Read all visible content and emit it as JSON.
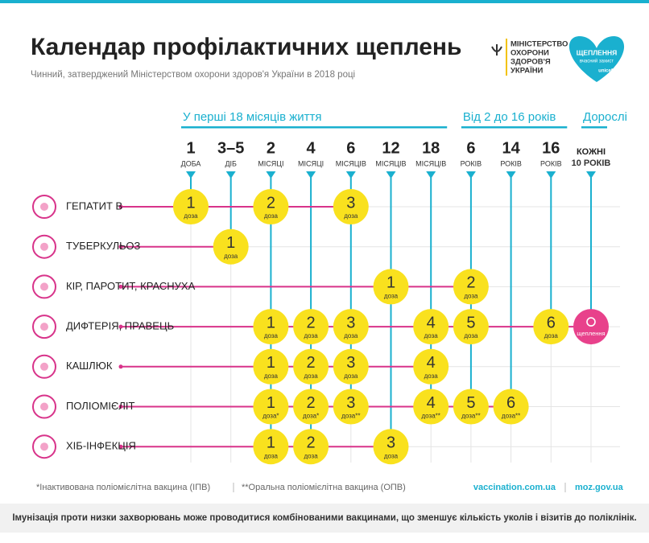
{
  "header": {
    "title": "Календар профілактичних щеплень",
    "subtitle": "Чинний, затверджений Міністерством охорони здоров'я України в 2018 році",
    "ministry": [
      "МІНІСТЕРСТВО",
      "ОХОРОНИ",
      "ЗДОРОВ'Я",
      "УКРАЇНИ"
    ],
    "badge": [
      "ЩЕПЛЕННЯ",
      "вчасний захист",
      "unicef"
    ]
  },
  "groups": [
    "У перші 18 місяців життя",
    "Від 2 до 16 років",
    "Дорослі"
  ],
  "columns": [
    {
      "value": "1",
      "unit": "ДОБА"
    },
    {
      "value": "3–5",
      "unit": "ДІБ"
    },
    {
      "value": "2",
      "unit": "МІСЯЦІ"
    },
    {
      "value": "4",
      "unit": "МІСЯЦІ"
    },
    {
      "value": "6",
      "unit": "МІСЯЦІВ"
    },
    {
      "value": "12",
      "unit": "МІСЯЦІВ"
    },
    {
      "value": "18",
      "unit": "МІСЯЦІВ"
    },
    {
      "value": "6",
      "unit": "РОКІВ"
    },
    {
      "value": "14",
      "unit": "РОКІВ"
    },
    {
      "value": "16",
      "unit": "РОКІВ"
    },
    {
      "value": "КОЖНІ",
      "unit": "10 РОКІВ"
    }
  ],
  "rows": [
    {
      "name": "ГЕПАТИТ В",
      "cells": [
        {
          "dose": "1",
          "label": "доза"
        },
        null,
        {
          "dose": "2",
          "label": "доза"
        },
        null,
        {
          "dose": "3",
          "label": "доза"
        },
        null,
        null,
        null,
        null,
        null,
        null
      ]
    },
    {
      "name": "ТУБЕРКУЛЬОЗ",
      "cells": [
        null,
        {
          "dose": "1",
          "label": "доза"
        },
        null,
        null,
        null,
        null,
        null,
        null,
        null,
        null,
        null
      ]
    },
    {
      "name": "КІР, ПАРОТИТ, КРАСНУХА",
      "cells": [
        null,
        null,
        null,
        null,
        null,
        {
          "dose": "1",
          "label": "доза"
        },
        null,
        {
          "dose": "2",
          "label": "доза"
        },
        null,
        null,
        null
      ]
    },
    {
      "name": "ДИФТЕРІЯ, ПРАВЕЦЬ",
      "cells": [
        null,
        null,
        {
          "dose": "1",
          "label": "доза"
        },
        {
          "dose": "2",
          "label": "доза"
        },
        {
          "dose": "3",
          "label": "доза"
        },
        null,
        {
          "dose": "4",
          "label": "доза"
        },
        {
          "dose": "5",
          "label": "доза"
        },
        null,
        {
          "dose": "6",
          "label": "доза"
        },
        {
          "label": "щеплення"
        }
      ]
    },
    {
      "name": "КАШЛЮК",
      "cells": [
        null,
        null,
        {
          "dose": "1",
          "label": "доза"
        },
        {
          "dose": "2",
          "label": "доза"
        },
        {
          "dose": "3",
          "label": "доза"
        },
        null,
        {
          "dose": "4",
          "label": "доза"
        },
        null,
        null,
        null,
        null
      ]
    },
    {
      "name": "ПОЛІОМІЄЛІТ",
      "cells": [
        null,
        null,
        {
          "dose": "1",
          "label": "доза*"
        },
        {
          "dose": "2",
          "label": "доза*"
        },
        {
          "dose": "3",
          "label": "доза**"
        },
        null,
        {
          "dose": "4",
          "label": "доза**"
        },
        {
          "dose": "5",
          "label": "доза**"
        },
        {
          "dose": "6",
          "label": "доза**"
        },
        null,
        null
      ]
    },
    {
      "name": "ХІБ-ІНФЕКЦІЯ",
      "cells": [
        null,
        null,
        {
          "dose": "1",
          "label": "доза"
        },
        {
          "dose": "2",
          "label": "доза"
        },
        null,
        {
          "dose": "3",
          "label": "доза"
        },
        null,
        null,
        null,
        null,
        null
      ]
    }
  ],
  "footer": {
    "notes": [
      "*Інактивована поліомієлітна вакцина (ІПВ)",
      "**Оральна поліомієлітна вакцина (ОПВ)"
    ],
    "links": [
      "vaccination.com.ua",
      "moz.gov.ua"
    ],
    "bottom": "Імунізація проти низки захворювань може проводитися комбінованими вакцинами, що зменшує кількість уколів і візитів до поліклінік."
  }
}
